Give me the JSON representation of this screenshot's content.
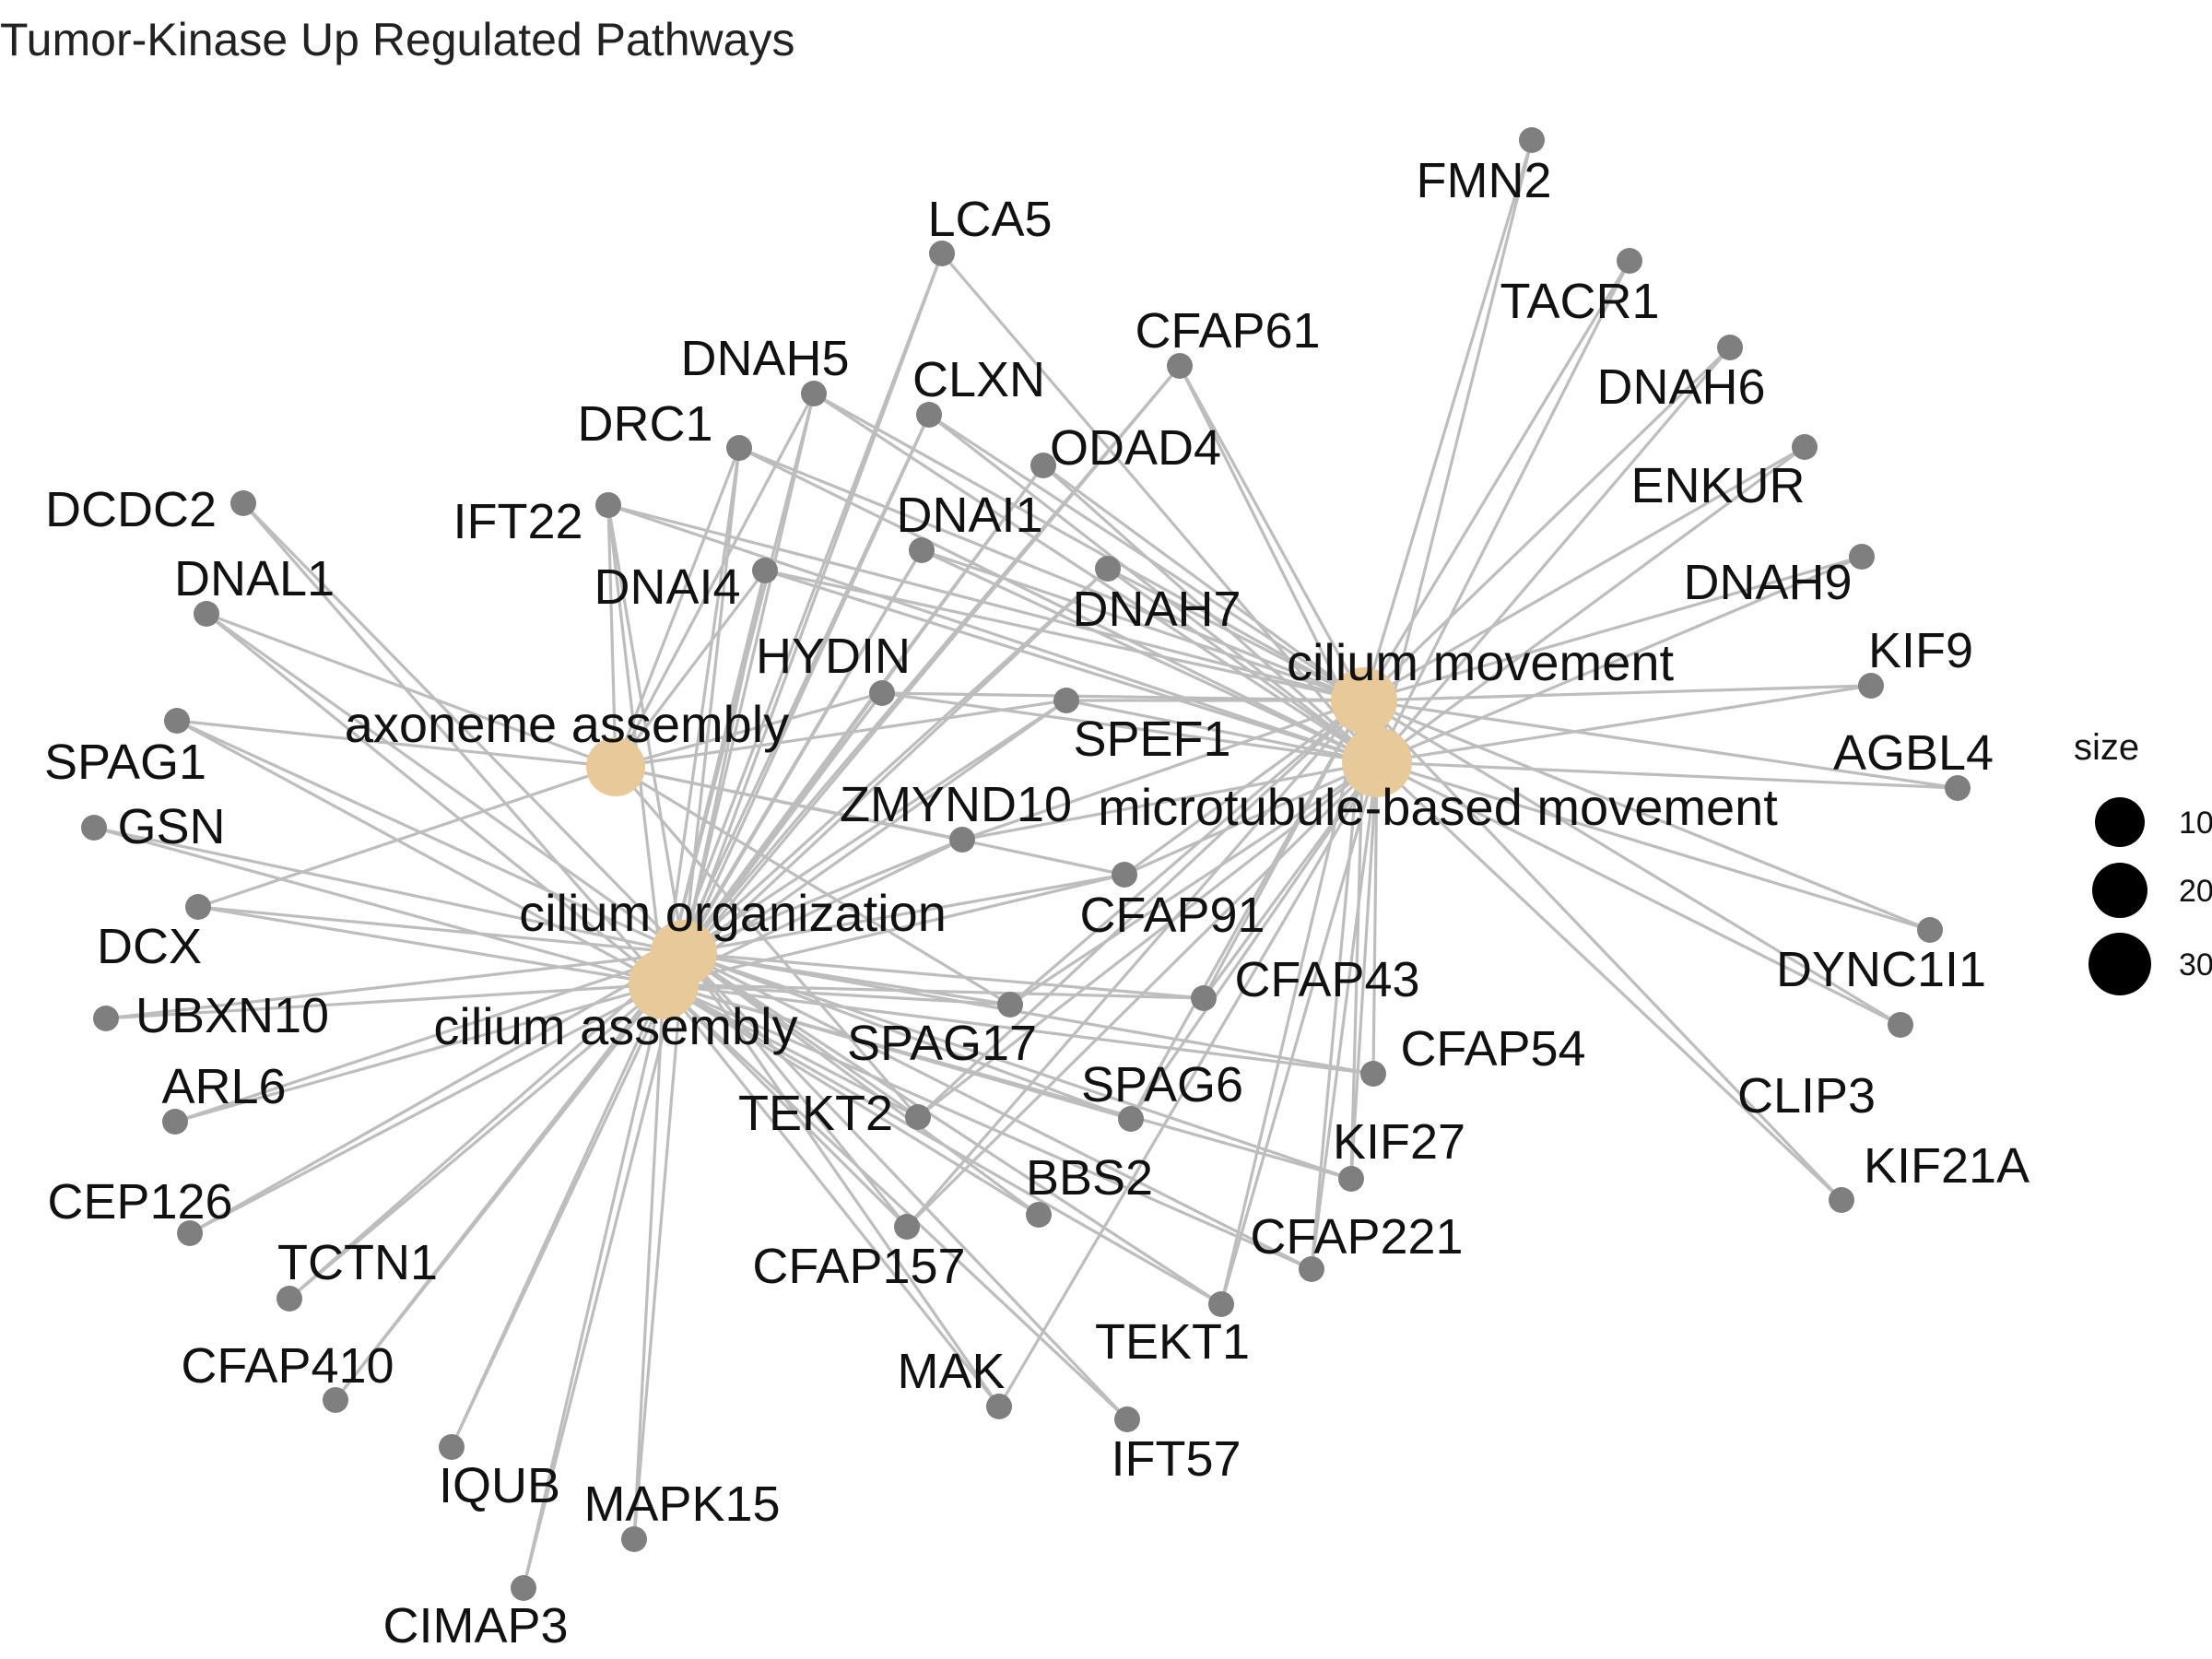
{
  "title": "Tumor-Kinase Up Regulated Pathways",
  "colors": {
    "term": "#e8c99a",
    "gene": "#7f7f7f",
    "edge": "#bdbdbd"
  },
  "terms": [
    "axoneme assembly",
    "cilium organization",
    "cilium assembly",
    "cilium movement",
    "microtubule-based movement"
  ],
  "genes": [
    "FMN2",
    "LCA5",
    "TACR1",
    "CFAP61",
    "DNAH6",
    "DNAH5",
    "CLXN",
    "ENKUR",
    "DRC1",
    "ODAD4",
    "DCDC2",
    "IFT22",
    "DNAI1",
    "DNAH9",
    "DNAI4",
    "DNAH7",
    "DNAL1",
    "KIF9",
    "HYDIN",
    "SPEF1",
    "SPAG1",
    "AGBL4",
    "GSN",
    "ZMYND10",
    "DCX",
    "CFAP91",
    "DYNC1I1",
    "UBXN10",
    "CFAP43",
    "SPAG17",
    "CFAP54",
    "ARL6",
    "SPAG6",
    "TEKT2",
    "CLIP3",
    "KIF27",
    "BBS2",
    "KIF21A",
    "CEP126",
    "CFAP221",
    "CFAP157",
    "TCTN1",
    "TEKT1",
    "MAK",
    "CFAP410",
    "IFT57",
    "IQUB",
    "MAPK15",
    "CIMAP3"
  ],
  "legend": {
    "title": "size",
    "labels": [
      "10",
      "20",
      "30"
    ]
  }
}
